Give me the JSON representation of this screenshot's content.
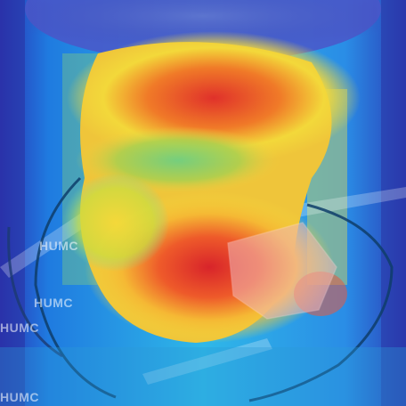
{
  "image": {
    "subject": "neck-region-heatmap",
    "overlay": "attention-heatmap",
    "colormap": "jet"
  },
  "watermark": {
    "text": "HUMC",
    "color": "#ffffff"
  },
  "colors": {
    "cold": "#2b2fb0",
    "cool": "#1ea0e8",
    "mid": "#3fe0c0",
    "warm": "#f7e23a",
    "hot": "#f08a24",
    "hottest": "#e0312a"
  }
}
